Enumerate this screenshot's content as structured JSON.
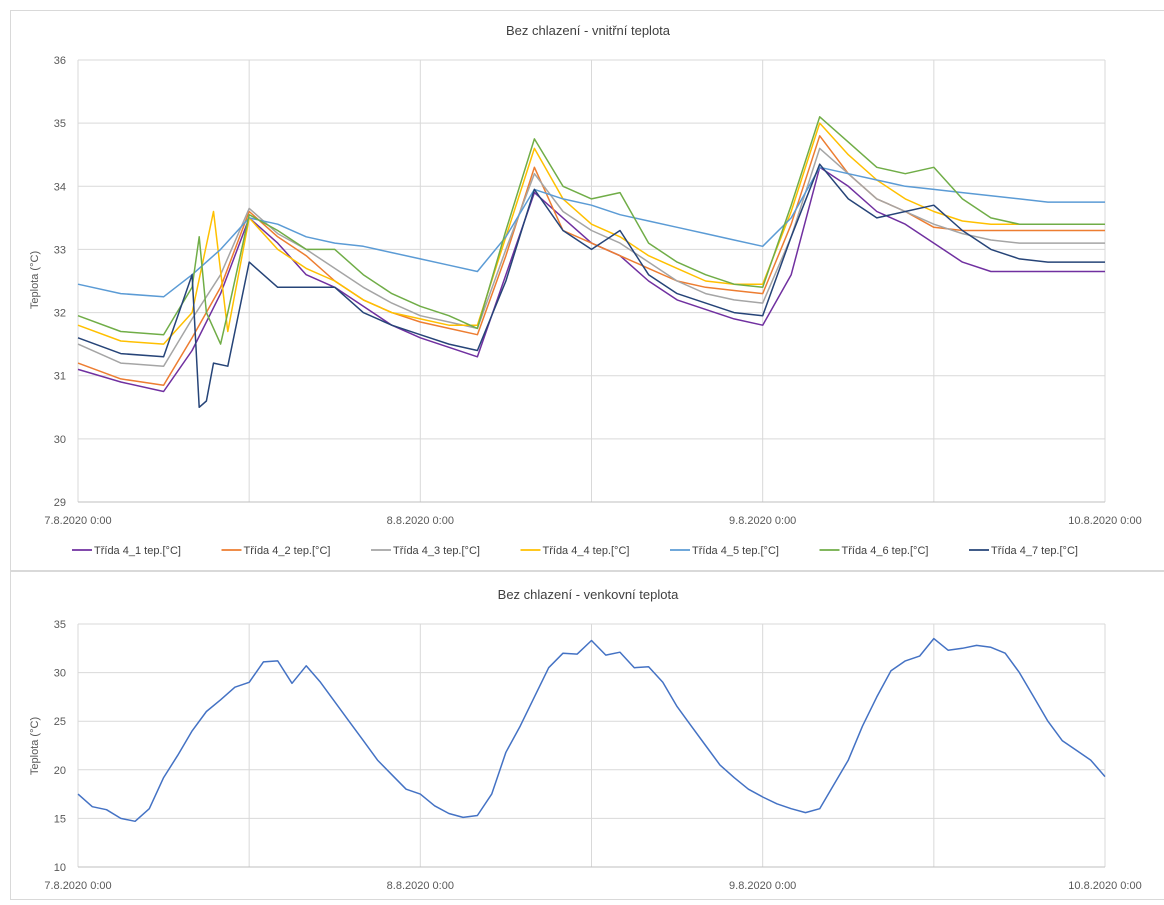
{
  "colors": {
    "t41": "#7030a0",
    "t42": "#ed7d31",
    "t43": "#a5a5a5",
    "t44": "#ffc000",
    "t45": "#5b9bd5",
    "t46": "#70ad47",
    "t47": "#264478",
    "outdoor": "#4472c4",
    "grid": "#d9d9d9",
    "border": "#d9d9d9"
  },
  "chart_data": [
    {
      "type": "line",
      "title": "Bez chlazení - vnitřní teplota",
      "ylabel": "Teplota (°C)",
      "xlabel": "",
      "ylim": [
        29,
        36
      ],
      "yticks": [
        29,
        30,
        31,
        32,
        33,
        34,
        35,
        36
      ],
      "xlim": [
        0,
        72
      ],
      "xticks": [
        0,
        24,
        48,
        72
      ],
      "xtick_labels": [
        "7.8.2020 0:00",
        "8.8.2020 0:00",
        "9.8.2020 0:00",
        "10.8.2020 0:00"
      ],
      "grid": true,
      "legend": "bottom",
      "series": [
        {
          "name": "Třída 4_1 tep.[°C]",
          "color_key": "t41",
          "x": [
            0,
            3,
            6,
            8,
            10,
            12,
            14,
            16,
            18,
            20,
            22,
            24,
            26,
            28,
            30,
            32,
            34,
            36,
            38,
            40,
            42,
            44,
            46,
            48,
            50,
            52,
            54,
            56,
            58,
            60,
            62,
            64,
            66,
            68,
            70,
            72
          ],
          "y": [
            31.1,
            30.9,
            30.75,
            31.4,
            32.3,
            33.5,
            33.1,
            32.6,
            32.4,
            32.1,
            31.8,
            31.6,
            31.45,
            31.3,
            32.6,
            33.9,
            33.5,
            33.1,
            32.9,
            32.5,
            32.2,
            32.05,
            31.9,
            31.8,
            32.6,
            34.3,
            34.0,
            33.6,
            33.4,
            33.1,
            32.8,
            32.65,
            32.65,
            32.65,
            32.65,
            32.65
          ]
        },
        {
          "name": "Třída 4_2 tep.[°C]",
          "color_key": "t42",
          "x": [
            0,
            3,
            6,
            8,
            10,
            12,
            14,
            16,
            18,
            20,
            22,
            24,
            26,
            28,
            30,
            32,
            34,
            36,
            38,
            40,
            42,
            44,
            46,
            48,
            50,
            52,
            54,
            56,
            58,
            60,
            62,
            64,
            66,
            68,
            70,
            72
          ],
          "y": [
            31.2,
            30.95,
            30.85,
            31.6,
            32.4,
            33.6,
            33.2,
            32.9,
            32.5,
            32.2,
            32.0,
            31.85,
            31.75,
            31.65,
            32.9,
            34.3,
            33.3,
            33.1,
            32.9,
            32.7,
            32.5,
            32.4,
            32.35,
            32.3,
            33.4,
            34.8,
            34.2,
            33.8,
            33.6,
            33.35,
            33.3,
            33.3,
            33.3,
            33.3,
            33.3,
            33.3
          ]
        },
        {
          "name": "Třída 4_3 tep.[°C]",
          "color_key": "t43",
          "x": [
            0,
            3,
            6,
            8,
            10,
            12,
            14,
            16,
            18,
            20,
            22,
            24,
            26,
            28,
            30,
            32,
            34,
            36,
            38,
            40,
            42,
            44,
            46,
            48,
            50,
            52,
            54,
            56,
            58,
            60,
            62,
            64,
            66,
            68,
            70,
            72
          ],
          "y": [
            31.5,
            31.2,
            31.15,
            31.9,
            32.6,
            33.65,
            33.25,
            33.0,
            32.7,
            32.4,
            32.15,
            31.95,
            31.85,
            31.75,
            33.0,
            34.2,
            33.6,
            33.3,
            33.1,
            32.8,
            32.5,
            32.3,
            32.2,
            32.15,
            33.2,
            34.6,
            34.2,
            33.8,
            33.6,
            33.4,
            33.25,
            33.15,
            33.1,
            33.1,
            33.1,
            33.1
          ]
        },
        {
          "name": "Třída 4_4 tep.[°C]",
          "color_key": "t44",
          "x": [
            0,
            3,
            6,
            8,
            9.5,
            10.5,
            12,
            14,
            16,
            18,
            20,
            22,
            24,
            26,
            28,
            30,
            32,
            34,
            36,
            38,
            40,
            42,
            44,
            46,
            48,
            50,
            52,
            54,
            56,
            58,
            60,
            62,
            64,
            66,
            68,
            70,
            72
          ],
          "y": [
            31.8,
            31.55,
            31.5,
            32.0,
            33.6,
            31.7,
            33.5,
            33.0,
            32.7,
            32.5,
            32.2,
            32.0,
            31.9,
            31.8,
            31.8,
            33.2,
            34.6,
            33.8,
            33.4,
            33.2,
            32.9,
            32.7,
            32.5,
            32.45,
            32.45,
            33.6,
            35.0,
            34.5,
            34.1,
            33.8,
            33.6,
            33.45,
            33.4,
            33.4,
            33.4,
            33.4,
            33.4
          ]
        },
        {
          "name": "Třída 4_5 tep.[°C]",
          "color_key": "t45",
          "x": [
            0,
            3,
            6,
            8,
            10,
            12,
            14,
            16,
            18,
            20,
            22,
            24,
            26,
            28,
            30,
            32,
            34,
            36,
            38,
            40,
            42,
            44,
            46,
            48,
            50,
            52,
            54,
            56,
            58,
            60,
            62,
            64,
            66,
            68,
            70,
            72
          ],
          "y": [
            32.45,
            32.3,
            32.25,
            32.6,
            33.0,
            33.5,
            33.4,
            33.2,
            33.1,
            33.05,
            32.95,
            32.85,
            32.75,
            32.65,
            33.2,
            33.95,
            33.8,
            33.7,
            33.55,
            33.45,
            33.35,
            33.25,
            33.15,
            33.05,
            33.5,
            34.3,
            34.2,
            34.1,
            34.0,
            33.95,
            33.9,
            33.85,
            33.8,
            33.75,
            33.75,
            33.75
          ]
        },
        {
          "name": "Třída 4_6 tep.[°C]",
          "color_key": "t46",
          "x": [
            0,
            3,
            6,
            8,
            8.5,
            9,
            10,
            10.5,
            12,
            14,
            16,
            18,
            20,
            22,
            24,
            26,
            28,
            30,
            32,
            34,
            36,
            38,
            40,
            42,
            44,
            46,
            48,
            50,
            52,
            54,
            56,
            58,
            60,
            62,
            64,
            66,
            68,
            70,
            72
          ],
          "y": [
            31.95,
            31.7,
            31.65,
            32.4,
            33.2,
            32.0,
            31.5,
            32.0,
            33.55,
            33.3,
            33.0,
            33.0,
            32.6,
            32.3,
            32.1,
            31.95,
            31.75,
            33.3,
            34.75,
            34.0,
            33.8,
            33.9,
            33.1,
            32.8,
            32.6,
            32.45,
            32.4,
            33.7,
            35.1,
            34.7,
            34.3,
            34.2,
            34.3,
            33.8,
            33.5,
            33.4,
            33.4,
            33.4,
            33.4
          ]
        },
        {
          "name": "Třída 4_7 tep.[°C]",
          "color_key": "t47",
          "x": [
            0,
            3,
            6,
            8,
            8.5,
            9,
            9.5,
            10.5,
            12,
            14,
            16,
            18,
            20,
            22,
            24,
            26,
            28,
            30,
            32,
            34,
            36,
            38,
            40,
            42,
            44,
            46,
            48,
            50,
            52,
            54,
            56,
            58,
            60,
            62,
            64,
            66,
            68,
            70,
            72
          ],
          "y": [
            31.6,
            31.35,
            31.3,
            32.6,
            30.5,
            30.6,
            31.2,
            31.15,
            32.8,
            32.4,
            32.4,
            32.4,
            32.0,
            31.8,
            31.65,
            31.5,
            31.4,
            32.5,
            33.95,
            33.3,
            33.0,
            33.3,
            32.6,
            32.3,
            32.15,
            32.0,
            31.95,
            33.2,
            34.35,
            33.8,
            33.5,
            33.6,
            33.7,
            33.3,
            33.0,
            32.85,
            32.8,
            32.8,
            32.8
          ]
        }
      ]
    },
    {
      "type": "line",
      "title": "Bez chlazení - venkovní teplota",
      "ylabel": "Teplota (°C)",
      "xlabel": "",
      "ylim": [
        10,
        35
      ],
      "yticks": [
        10,
        15,
        20,
        25,
        30,
        35
      ],
      "xlim": [
        0,
        72
      ],
      "xticks": [
        0,
        24,
        48,
        72
      ],
      "xtick_labels": [
        "7.8.2020 0:00",
        "8.8.2020 0:00",
        "9.8.2020 0:00",
        "10.8.2020 0:00"
      ],
      "grid": true,
      "series": [
        {
          "color_key": "outdoor",
          "x": [
            0,
            1,
            2,
            3,
            4,
            5,
            6,
            7,
            8,
            9,
            10,
            11,
            12,
            13,
            14,
            15,
            16,
            17,
            18,
            19,
            20,
            21,
            22,
            23,
            24,
            25,
            26,
            27,
            28,
            29,
            30,
            31,
            32,
            33,
            34,
            35,
            36,
            37,
            38,
            39,
            40,
            41,
            42,
            43,
            44,
            45,
            46,
            47,
            48,
            49,
            50,
            51,
            52,
            53,
            54,
            55,
            56,
            57,
            58,
            59,
            60,
            61,
            62,
            63,
            64,
            65,
            66,
            67,
            68,
            69,
            70,
            71,
            72
          ],
          "y": [
            17.5,
            16.2,
            15.9,
            15.0,
            14.7,
            16.0,
            19.2,
            21.5,
            24.0,
            26.0,
            27.2,
            28.5,
            29.0,
            31.1,
            31.2,
            28.9,
            30.7,
            29.0,
            27.0,
            25.0,
            23.0,
            21.0,
            19.5,
            18.0,
            17.5,
            16.3,
            15.5,
            15.1,
            15.3,
            17.5,
            21.8,
            24.5,
            27.5,
            30.5,
            32.0,
            31.9,
            33.3,
            31.8,
            32.1,
            30.5,
            30.6,
            29.0,
            26.5,
            24.5,
            22.5,
            20.5,
            19.2,
            18.0,
            17.2,
            16.5,
            16.0,
            15.6,
            16.0,
            18.5,
            21.0,
            24.5,
            27.5,
            30.2,
            31.2,
            31.7,
            33.5,
            32.3,
            32.5,
            32.8,
            32.6,
            32.0,
            30.0,
            27.5,
            25.0,
            23.0,
            22.0,
            21.0,
            19.3
          ]
        }
      ]
    }
  ]
}
